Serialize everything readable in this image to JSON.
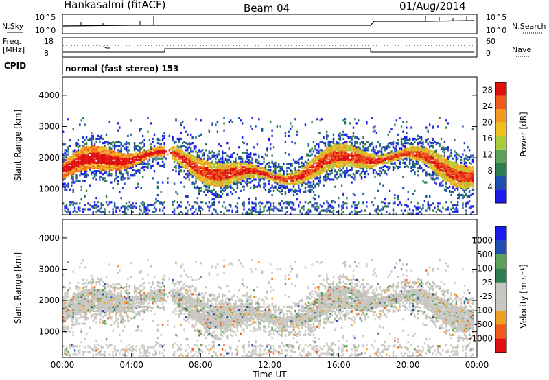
{
  "header": {
    "station": "Hankasalmi (fitACF)",
    "beam": "Beam 04",
    "date": "01/Aug/2014"
  },
  "top_panels": {
    "nsky_label": "N.Sky",
    "nsearch_label": "N.Search",
    "nsky_ticks": [
      "10^5",
      "10^0"
    ],
    "nsearch_ticks": [
      "10^5",
      "10^0"
    ],
    "freq_label_1": "Freq.",
    "freq_label_2": "[MHz]",
    "freq_ticks": [
      "18",
      "8"
    ],
    "nave_label": "Nave",
    "nave_ticks": [
      "60",
      "0"
    ],
    "cpid_label": "CPID",
    "cpid_value": "normal (fast stereo) 153"
  },
  "colors": {
    "power": [
      "#1b1bf0",
      "#1f4fb0",
      "#2e7d4f",
      "#5ca05a",
      "#a9cc3c",
      "#f0c020",
      "#f09a20",
      "#f05a1a",
      "#e01010"
    ],
    "velocity": [
      "#e01010",
      "#f05a1a",
      "#f0a020",
      "#c8c6c0",
      "#c8c6c0",
      "#2e7d4f",
      "#5ca05a",
      "#1f4fb0",
      "#1b1bf0"
    ],
    "ground_scatter": "#c8c6c0"
  },
  "chart_data": [
    {
      "type": "heatmap",
      "name": "power",
      "x_axis": "Time UT",
      "x_ticks": [
        "00:00",
        "04:00",
        "08:00",
        "12:00",
        "16:00",
        "20:00",
        "00:00"
      ],
      "xlim_hours": [
        0,
        24
      ],
      "ylabel": "Slant Range [km]",
      "y_ticks": [
        1000,
        2000,
        3000,
        4000
      ],
      "ylim": [
        180,
        4590
      ],
      "colorbar_label": "Power [dB]",
      "colorbar_ticks": [
        4,
        8,
        12,
        16,
        20,
        24,
        28
      ],
      "colorbar_range": [
        0,
        30
      ]
    },
    {
      "type": "heatmap",
      "name": "velocity",
      "x_axis": "Time UT",
      "xlabel": "Time UT",
      "x_ticks": [
        "00:00",
        "04:00",
        "08:00",
        "12:00",
        "16:00",
        "20:00",
        "00:00"
      ],
      "xlim_hours": [
        0,
        24
      ],
      "ylabel": "Slant Range [km]",
      "y_ticks": [
        1000,
        2000,
        3000,
        4000
      ],
      "ylim": [
        180,
        4590
      ],
      "colorbar_label": "Velocity [m s⁻¹]",
      "colorbar_ticks": [
        "1000",
        "500",
        "100",
        "25",
        "-25",
        "-100",
        "-500",
        "-1000"
      ]
    }
  ]
}
